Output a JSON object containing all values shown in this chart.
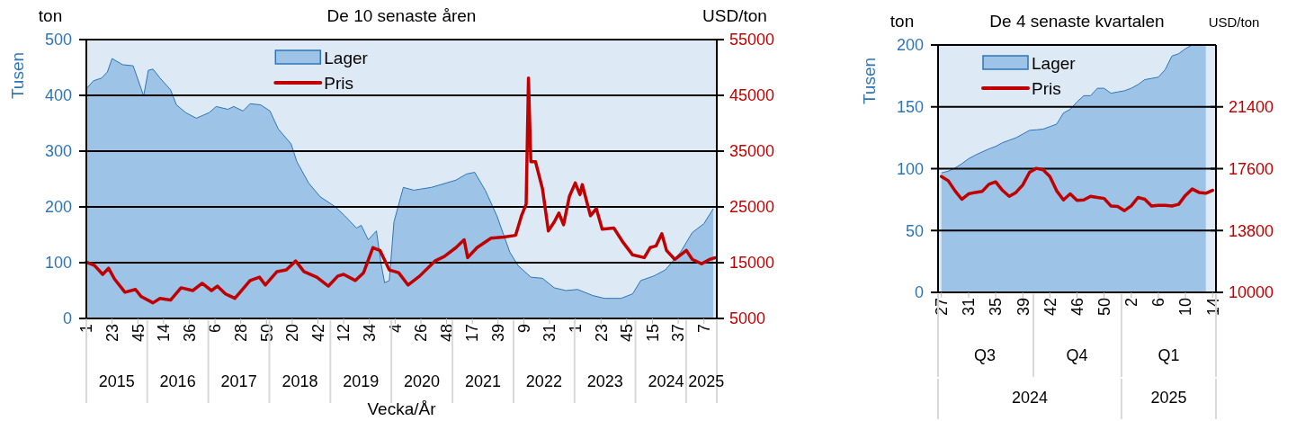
{
  "chart_data": [
    {
      "type": "area",
      "title": "De 10 senaste åren",
      "ylabel": "Tusen",
      "y2label": "USD/ton",
      "xlabel": "Vecka/År",
      "annotations": [
        "ton"
      ],
      "xlim": [
        "2015-01-01",
        "2025-05-01"
      ],
      "x2lim": [
        "2015-01-01",
        "2025-05-01"
      ],
      "ylim": [
        0,
        500
      ],
      "y2lim": [
        5000,
        55000
      ],
      "yticks": [
        0,
        100,
        200,
        300,
        400,
        500
      ],
      "y2ticks": [
        5000,
        15000,
        25000,
        35000,
        45000,
        55000
      ],
      "xticks": [
        {
          "value": "2015-01-01",
          "label": "1"
        },
        {
          "value": "2015-06-04",
          "label": "23"
        },
        {
          "value": "2015-11-05",
          "label": "45"
        },
        {
          "value": "2016-04-07",
          "label": "14"
        },
        {
          "value": "2016-09-08",
          "label": "36"
        },
        {
          "value": "2017-02-09",
          "label": "6"
        },
        {
          "value": "2017-07-13",
          "label": "28"
        },
        {
          "value": "2017-12-14",
          "label": "50"
        },
        {
          "value": "2018-05-17",
          "label": "20"
        },
        {
          "value": "2018-10-18",
          "label": "42"
        },
        {
          "value": "2019-03-21",
          "label": "12"
        },
        {
          "value": "2019-08-22",
          "label": "34"
        },
        {
          "value": "2020-01-23",
          "label": "4"
        },
        {
          "value": "2020-06-25",
          "label": "26"
        },
        {
          "value": "2020-11-26",
          "label": "48"
        },
        {
          "value": "2021-04-29",
          "label": "17"
        },
        {
          "value": "2021-09-30",
          "label": "39"
        },
        {
          "value": "2022-03-03",
          "label": "9"
        },
        {
          "value": "2022-08-04",
          "label": "31"
        },
        {
          "value": "2023-01-05",
          "label": "1"
        },
        {
          "value": "2023-06-08",
          "label": "23"
        },
        {
          "value": "2023-11-09",
          "label": "45"
        },
        {
          "value": "2024-04-11",
          "label": "15"
        },
        {
          "value": "2024-09-12",
          "label": "37"
        },
        {
          "value": "2025-02-13",
          "label": "7"
        }
      ],
      "x2ticks": [
        {
          "value": "2015-07-02",
          "label": "2015"
        },
        {
          "value": "2016-07-01",
          "label": "2016"
        },
        {
          "value": "2017-07-02",
          "label": "2017"
        },
        {
          "value": "2018-07-02",
          "label": "2018"
        },
        {
          "value": "2019-07-02",
          "label": "2019"
        },
        {
          "value": "2020-07-01",
          "label": "2020"
        },
        {
          "value": "2021-07-02",
          "label": "2021"
        },
        {
          "value": "2022-07-02",
          "label": "2022"
        },
        {
          "value": "2023-07-02",
          "label": "2023"
        },
        {
          "value": "2024-07-01",
          "label": "2024"
        },
        {
          "value": "2025-02-27",
          "label": "2025"
        }
      ],
      "grid": "y",
      "legend": "top",
      "series": [
        {
          "name": "Lager",
          "color": "#9dc3e6",
          "x": [
            "2015-01-01",
            "2015-02-12",
            "2015-04-02",
            "2015-05-07",
            "2015-06-04",
            "2015-08-06",
            "2015-10-08",
            "2015-12-10",
            "2016-01-07",
            "2016-02-04",
            "2016-03-17",
            "2016-05-19",
            "2016-06-23",
            "2016-08-18",
            "2016-10-20",
            "2017-01-05",
            "2017-02-16",
            "2017-04-27",
            "2017-06-01",
            "2017-07-27",
            "2017-09-07",
            "2017-11-09",
            "2018-01-04",
            "2018-02-22",
            "2018-05-10",
            "2018-06-14",
            "2018-08-23",
            "2018-11-01",
            "2019-01-31",
            "2019-03-28",
            "2019-06-06",
            "2019-07-04",
            "2019-08-15",
            "2019-10-03",
            "2019-10-31",
            "2019-11-21",
            "2019-12-19",
            "2020-01-16",
            "2020-03-12",
            "2020-05-14",
            "2020-08-27",
            "2021-01-21",
            "2021-03-25",
            "2021-05-13",
            "2021-07-15",
            "2021-09-23",
            "2021-12-09",
            "2022-01-27",
            "2022-04-14",
            "2022-06-23",
            "2022-09-01",
            "2022-11-10",
            "2023-01-19",
            "2023-04-20",
            "2023-06-29",
            "2023-10-05",
            "2023-12-14",
            "2024-02-01",
            "2024-04-18",
            "2024-06-27",
            "2024-09-26",
            "2024-12-05",
            "2025-02-13",
            "2025-04-10"
          ],
          "values": [
            412,
            426,
            431,
            442,
            466,
            455,
            453,
            399,
            445,
            447,
            431,
            410,
            383,
            369,
            359,
            369,
            380,
            375,
            380,
            372,
            385,
            383,
            372,
            340,
            313,
            281,
            243,
            218,
            200,
            184,
            162,
            167,
            141,
            157,
            98,
            64,
            68,
            173,
            235,
            230,
            235,
            248,
            259,
            262,
            230,
            184,
            119,
            95,
            74,
            72,
            55,
            50,
            52,
            41,
            36,
            36,
            44,
            68,
            76,
            87,
            119,
            154,
            170,
            197
          ]
        },
        {
          "name": "Pris",
          "type": "line",
          "axis": "y2",
          "color": "#c00000",
          "x": [
            "2015-01-01",
            "2015-02-19",
            "2015-04-09",
            "2015-05-14",
            "2015-06-18",
            "2015-08-20",
            "2015-10-22",
            "2015-11-26",
            "2016-02-04",
            "2016-03-17",
            "2016-05-19",
            "2016-07-21",
            "2016-09-29",
            "2016-11-24",
            "2017-01-19",
            "2017-02-23",
            "2017-04-13",
            "2017-06-08",
            "2017-09-07",
            "2017-11-02",
            "2017-12-07",
            "2018-02-15",
            "2018-04-12",
            "2018-06-07",
            "2018-07-26",
            "2018-10-11",
            "2018-12-20",
            "2019-02-14",
            "2019-03-21",
            "2019-05-30",
            "2019-07-18",
            "2019-09-12",
            "2019-10-24",
            "2019-12-19",
            "2020-02-13",
            "2020-04-09",
            "2020-06-18",
            "2020-09-17",
            "2020-11-12",
            "2021-01-21",
            "2021-03-11",
            "2021-04-01",
            "2021-05-27",
            "2021-08-19",
            "2021-11-04",
            "2022-01-13",
            "2022-02-17",
            "2022-03-17",
            "2022-03-31",
            "2022-04-14",
            "2022-05-12",
            "2022-06-23",
            "2022-07-28",
            "2022-09-01",
            "2022-09-29",
            "2022-10-27",
            "2022-12-01",
            "2023-01-05",
            "2023-02-02",
            "2023-02-16",
            "2023-04-06",
            "2023-05-11",
            "2023-06-15",
            "2023-08-24",
            "2023-10-19",
            "2023-12-14",
            "2024-02-22",
            "2024-03-28",
            "2024-05-02",
            "2024-06-06",
            "2024-07-04",
            "2024-08-22",
            "2024-10-31",
            "2024-12-05",
            "2025-01-30",
            "2025-03-20",
            "2025-04-24"
          ],
          "values": [
            15100,
            14500,
            12900,
            14000,
            12100,
            9700,
            10200,
            8900,
            7800,
            8600,
            8300,
            10500,
            10000,
            11300,
            10000,
            10800,
            9400,
            8600,
            11800,
            12400,
            11000,
            13400,
            13700,
            15300,
            13400,
            12400,
            10800,
            12600,
            12900,
            11800,
            13200,
            17700,
            17200,
            13700,
            13200,
            11000,
            12600,
            15300,
            16100,
            17700,
            19100,
            15900,
            17700,
            19400,
            19600,
            19900,
            23400,
            25500,
            48100,
            33100,
            33100,
            28200,
            20700,
            22300,
            23900,
            21800,
            26900,
            29300,
            27200,
            29000,
            23400,
            24700,
            21000,
            21200,
            18600,
            16400,
            15900,
            17700,
            18000,
            20200,
            17200,
            15600,
            17200,
            15600,
            14800,
            15600,
            15900
          ]
        }
      ]
    },
    {
      "type": "area",
      "title": "De 4 senaste kvartalen",
      "ylabel": "Tusen",
      "y2label": "USD/ton",
      "annotations": [
        "ton",
        "Q3",
        "Q4",
        "Q1",
        "2024",
        "2025"
      ],
      "categories": [
        "27",
        null,
        null,
        null,
        "31",
        null,
        null,
        null,
        "35",
        null,
        null,
        null,
        "39",
        null,
        null,
        null,
        "42",
        null,
        null,
        null,
        "46",
        null,
        null,
        null,
        "50",
        null,
        null,
        null,
        "2",
        null,
        null,
        null,
        "6",
        null,
        null,
        null,
        "10",
        null,
        null,
        null,
        "14"
      ],
      "ylim": [
        0,
        200
      ],
      "y2lim": [
        10000,
        25200
      ],
      "yticks": [
        0,
        50,
        100,
        150,
        200
      ],
      "y2ticks": [
        10000,
        13800,
        17600,
        21400
      ],
      "grid": "y",
      "legend": "top left",
      "series": [
        {
          "name": "Lager",
          "color": "#9dc3e6",
          "values": [
            96.6,
            98,
            100.5,
            104,
            108,
            111,
            113.5,
            116,
            118,
            121,
            123,
            125,
            128,
            131,
            131.4,
            132,
            134,
            136,
            145,
            148,
            154,
            159,
            159,
            165,
            165,
            161,
            162,
            163,
            165,
            168,
            172,
            173,
            174,
            180,
            191,
            193,
            197,
            200,
            200,
            200,
            null
          ]
        },
        {
          "name": "Pris",
          "type": "line",
          "axis": "y2",
          "color": "#c00000",
          "values": [
            17120,
            16860,
            16240,
            15720,
            16050,
            16140,
            16200,
            16640,
            16790,
            16270,
            15900,
            16140,
            16600,
            17380,
            17620,
            17530,
            17120,
            16240,
            15680,
            16050,
            15650,
            15680,
            15900,
            15830,
            15770,
            15310,
            15280,
            15020,
            15310,
            15830,
            15720,
            15310,
            15350,
            15350,
            15310,
            15410,
            15960,
            16350,
            16140,
            16090,
            16270
          ]
        }
      ]
    }
  ]
}
